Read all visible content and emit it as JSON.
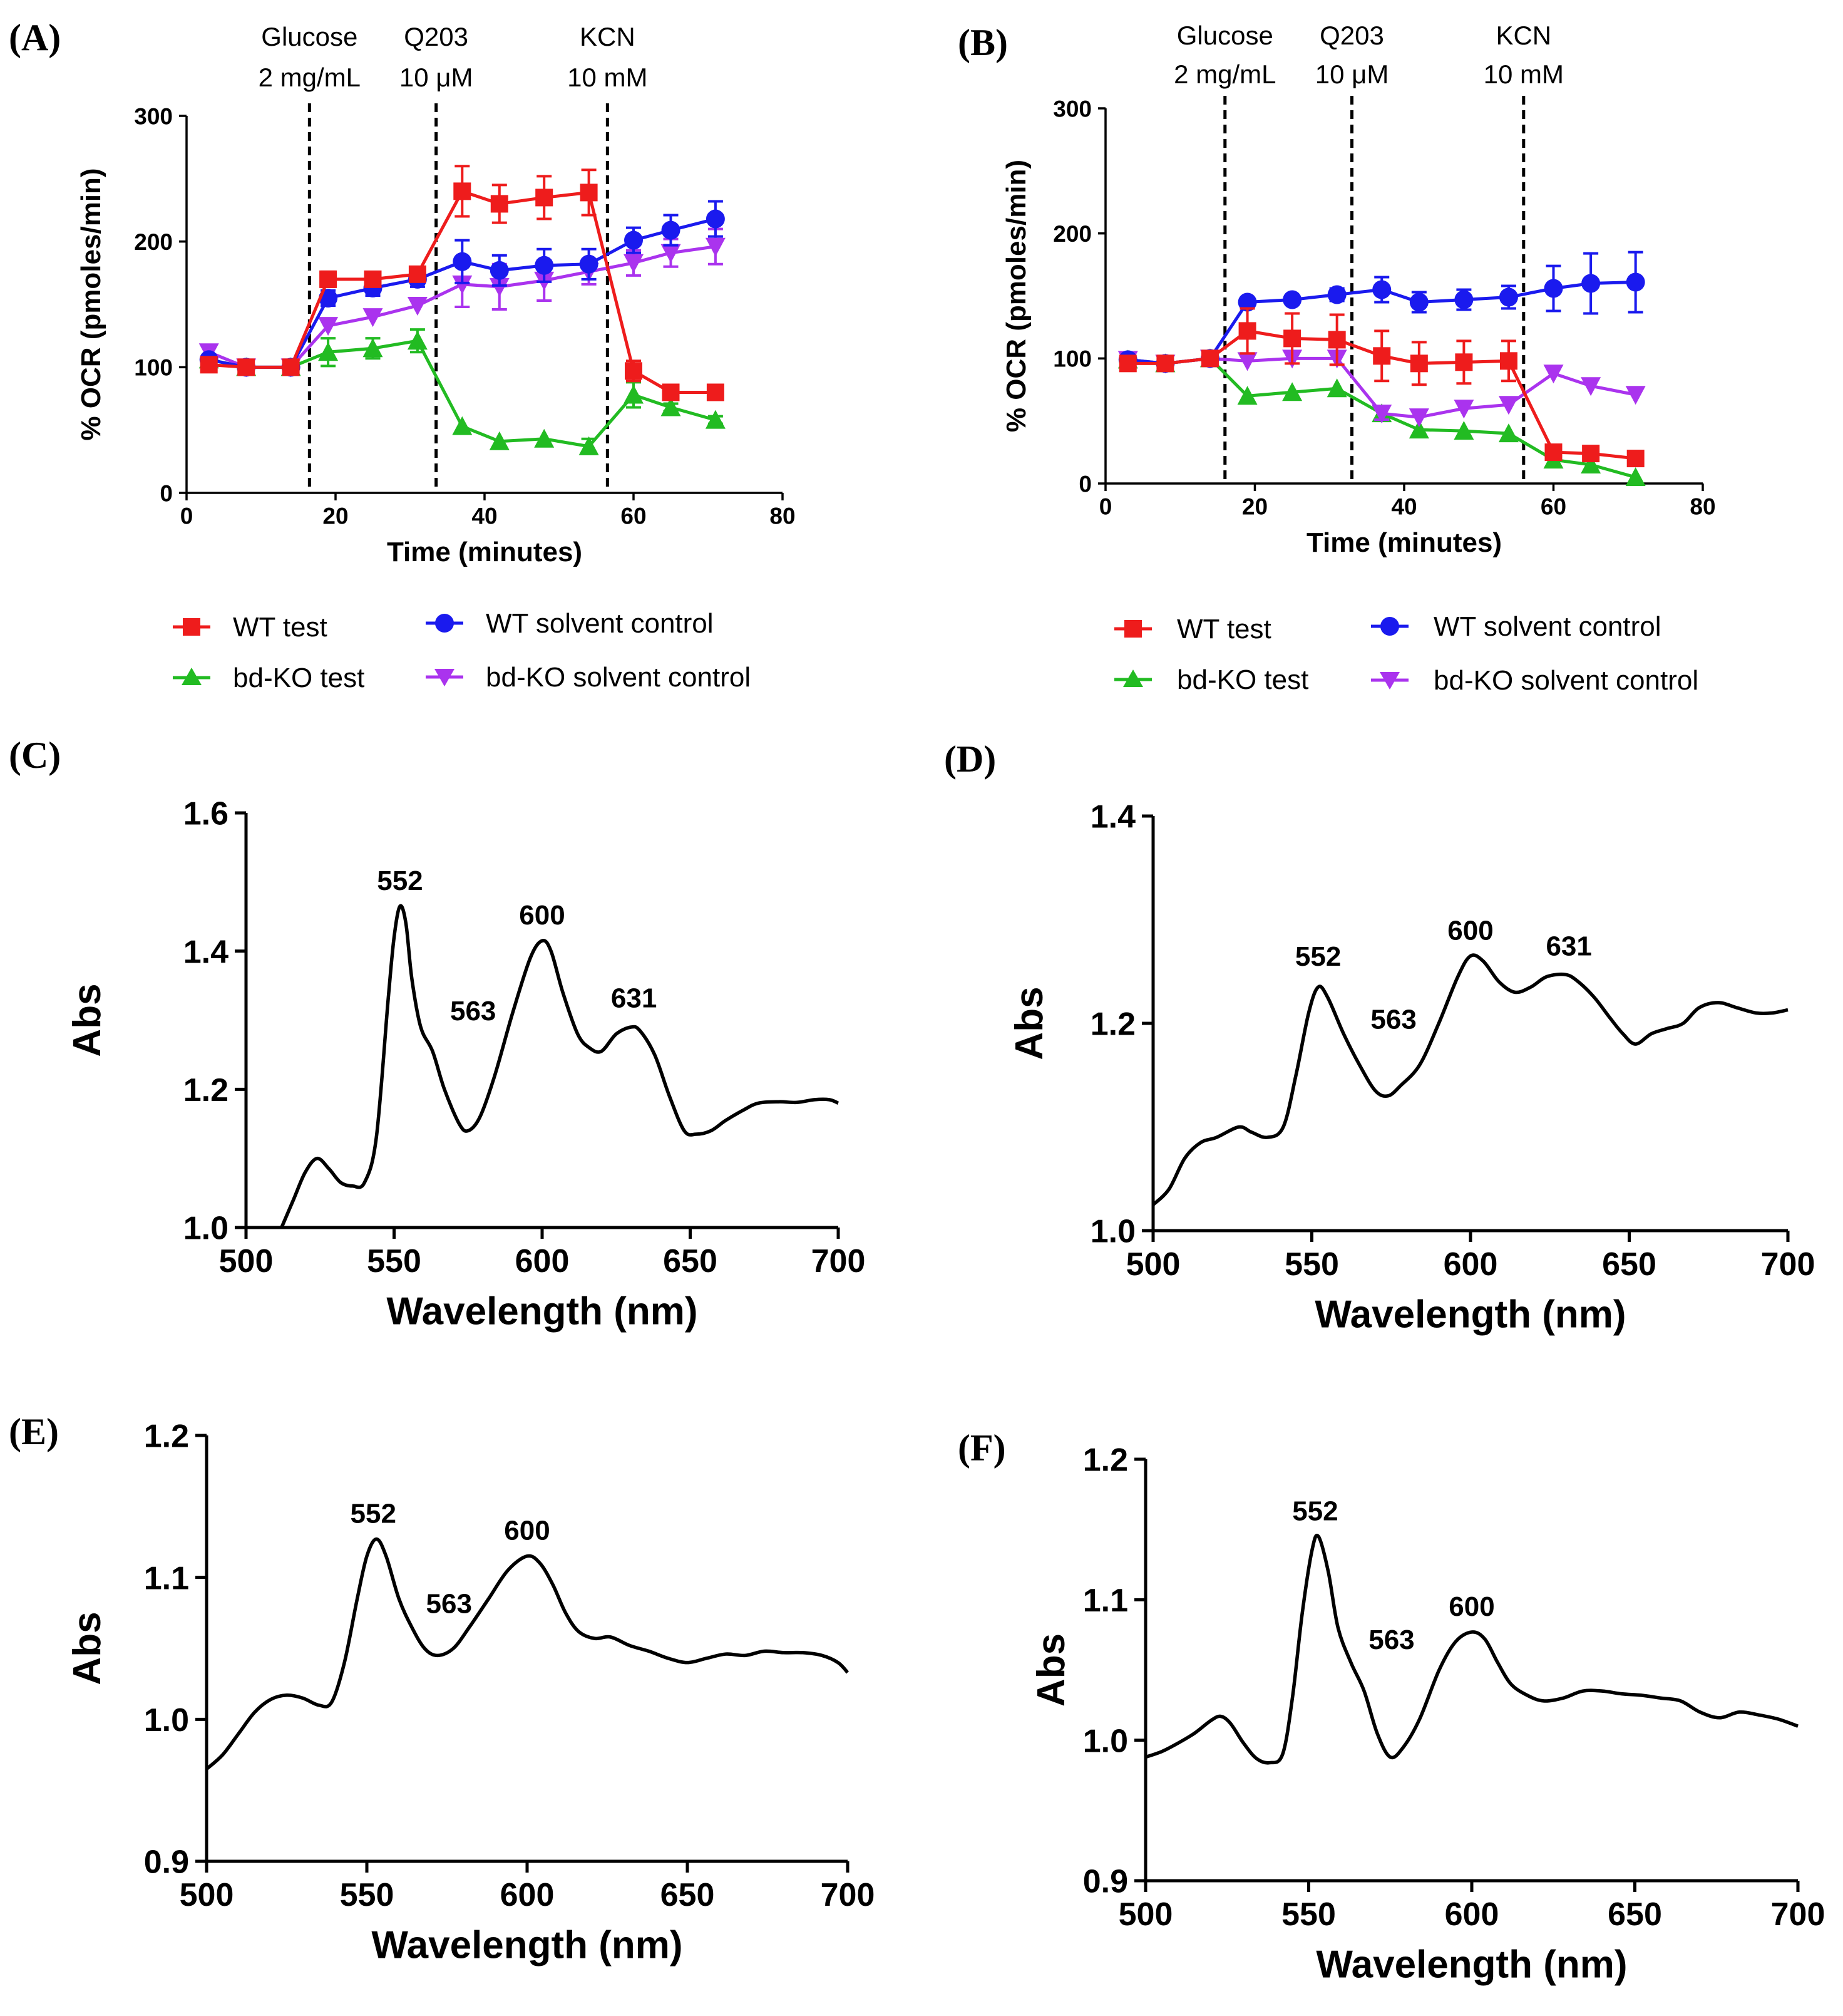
{
  "figure": {
    "panels": [
      "(A)",
      "(B)",
      "(C)",
      "(D)",
      "(E)",
      "(F)"
    ]
  },
  "chart_data": [
    {
      "id": "A",
      "type": "line",
      "panel_label": "(A)",
      "xlabel": "Time (minutes)",
      "ylabel": "% OCR (pmoles/min)",
      "xlim": [
        0,
        80
      ],
      "ylim": [
        0,
        300
      ],
      "xticks": [
        0,
        20,
        40,
        60,
        80
      ],
      "yticks": [
        0,
        100,
        200,
        300
      ],
      "annotations": [
        {
          "x": 16.5,
          "line1": "Glucose",
          "line2": "2 mg/mL"
        },
        {
          "x": 33.5,
          "line1": "Q203",
          "line2": "10 μM"
        },
        {
          "x": 56.5,
          "line1": "KCN",
          "line2": "10 mM"
        }
      ],
      "x": [
        3,
        8,
        14,
        19,
        25,
        31,
        37,
        42,
        48,
        54,
        60,
        65,
        71
      ],
      "series": [
        {
          "name": "WT test",
          "color": "#ee1c1c",
          "marker": "square",
          "values": [
            102,
            100,
            100,
            170,
            170,
            174,
            240,
            230,
            235,
            239,
            97,
            80,
            80
          ],
          "errors": [
            0,
            0,
            0,
            6,
            4,
            4,
            20,
            15,
            17,
            18,
            8,
            3,
            3
          ]
        },
        {
          "name": "WT solvent control",
          "color": "#1a1aee",
          "marker": "circle",
          "values": [
            106,
            100,
            100,
            155,
            163,
            170,
            184,
            177,
            181,
            182,
            201,
            209,
            218
          ],
          "errors": [
            0,
            0,
            0,
            6,
            6,
            6,
            17,
            12,
            13,
            12,
            10,
            12,
            14
          ]
        },
        {
          "name": "bd-KO test",
          "color": "#22bb22",
          "marker": "triangle-up",
          "values": [
            106,
            100,
            100,
            112,
            115,
            121,
            53,
            41,
            43,
            37,
            78,
            68,
            58
          ],
          "errors": [
            0,
            0,
            0,
            11,
            8,
            9,
            0,
            0,
            0,
            6,
            10,
            3,
            3
          ]
        },
        {
          "name": "bd-KO solvent control",
          "color": "#aa33ee",
          "marker": "triangle-down",
          "values": [
            112,
            100,
            100,
            133,
            140,
            149,
            166,
            164,
            169,
            176,
            183,
            191,
            196
          ],
          "errors": [
            0,
            0,
            0,
            0,
            0,
            0,
            18,
            18,
            16,
            10,
            10,
            11,
            14
          ]
        }
      ]
    },
    {
      "id": "B",
      "type": "line",
      "panel_label": "(B)",
      "xlabel": "Time (minutes)",
      "ylabel": "% OCR (pmoles/min)",
      "xlim": [
        0,
        80
      ],
      "ylim": [
        0,
        300
      ],
      "xticks": [
        0,
        20,
        40,
        60,
        80
      ],
      "yticks": [
        0,
        100,
        200,
        300
      ],
      "annotations": [
        {
          "x": 16,
          "line1": "Glucose",
          "line2": "2 mg/mL"
        },
        {
          "x": 33,
          "line1": "Q203",
          "line2": "10 μM"
        },
        {
          "x": 56,
          "line1": "KCN",
          "line2": "10 mM"
        }
      ],
      "x": [
        3,
        8,
        14,
        19,
        25,
        31,
        37,
        42,
        48,
        54,
        60,
        65,
        71
      ],
      "series": [
        {
          "name": "WT test",
          "color": "#ee1c1c",
          "marker": "square",
          "values": [
            96,
            96,
            100,
            122,
            116,
            115,
            102,
            96,
            97,
            98,
            25,
            24,
            20
          ],
          "errors": [
            0,
            4,
            0,
            18,
            20,
            20,
            20,
            17,
            17,
            16,
            3,
            3,
            3
          ]
        },
        {
          "name": "WT solvent control",
          "color": "#1a1aee",
          "marker": "circle",
          "values": [
            99,
            96,
            100,
            145,
            147,
            151,
            155,
            145,
            147,
            149,
            156,
            160,
            161
          ],
          "errors": [
            0,
            4,
            0,
            0,
            0,
            5,
            10,
            8,
            8,
            9,
            18,
            24,
            24
          ]
        },
        {
          "name": "bd-KO test",
          "color": "#22bb22",
          "marker": "triangle-up",
          "values": [
            99,
            96,
            100,
            70,
            73,
            76,
            56,
            43,
            42,
            40,
            19,
            15,
            5
          ],
          "errors": [
            0,
            0,
            0,
            0,
            0,
            0,
            5,
            0,
            0,
            0,
            0,
            0,
            0
          ]
        },
        {
          "name": "bd-KO solvent control",
          "color": "#aa33ee",
          "marker": "triangle-down",
          "values": [
            99,
            96,
            100,
            98,
            100,
            100,
            56,
            53,
            60,
            63,
            88,
            78,
            71
          ],
          "errors": [
            0,
            0,
            0,
            0,
            0,
            0,
            5,
            0,
            0,
            0,
            0,
            0,
            0
          ]
        }
      ]
    },
    {
      "id": "C",
      "type": "line",
      "panel_label": "(C)",
      "xlabel": "Wavelength (nm)",
      "ylabel": "Abs",
      "xlim": [
        500,
        700
      ],
      "ylim": [
        1.0,
        1.6
      ],
      "xticks": [
        500,
        550,
        600,
        650,
        700
      ],
      "yticks": [
        "1.0",
        "1.2",
        "1.4",
        "1.6"
      ],
      "peaks": [
        {
          "label": "552",
          "x": 552,
          "y": 1.465
        },
        {
          "label": "563",
          "x": 563,
          "y": 1.3
        },
        {
          "label": "600",
          "x": 600,
          "y": 1.415
        },
        {
          "label": "631",
          "x": 631,
          "y": 1.295
        }
      ],
      "spectrum": [
        [
          512,
          1.0
        ],
        [
          516,
          1.04
        ],
        [
          520,
          1.08
        ],
        [
          524,
          1.1
        ],
        [
          528,
          1.085
        ],
        [
          532,
          1.065
        ],
        [
          536,
          1.06
        ],
        [
          540,
          1.065
        ],
        [
          544,
          1.13
        ],
        [
          548,
          1.33
        ],
        [
          550,
          1.42
        ],
        [
          552,
          1.465
        ],
        [
          554,
          1.44
        ],
        [
          556,
          1.36
        ],
        [
          559,
          1.29
        ],
        [
          563,
          1.255
        ],
        [
          567,
          1.2
        ],
        [
          572,
          1.15
        ],
        [
          575,
          1.14
        ],
        [
          579,
          1.16
        ],
        [
          584,
          1.22
        ],
        [
          590,
          1.31
        ],
        [
          596,
          1.39
        ],
        [
          600,
          1.415
        ],
        [
          603,
          1.4
        ],
        [
          607,
          1.34
        ],
        [
          612,
          1.28
        ],
        [
          616,
          1.26
        ],
        [
          620,
          1.255
        ],
        [
          625,
          1.28
        ],
        [
          630,
          1.29
        ],
        [
          633,
          1.285
        ],
        [
          638,
          1.25
        ],
        [
          643,
          1.19
        ],
        [
          648,
          1.14
        ],
        [
          652,
          1.135
        ],
        [
          657,
          1.14
        ],
        [
          662,
          1.155
        ],
        [
          668,
          1.17
        ],
        [
          673,
          1.18
        ],
        [
          680,
          1.182
        ],
        [
          686,
          1.181
        ],
        [
          692,
          1.185
        ],
        [
          697,
          1.185
        ],
        [
          700,
          1.18
        ]
      ]
    },
    {
      "id": "D",
      "type": "line",
      "panel_label": "(D)",
      "xlabel": "Wavelength (nm)",
      "ylabel": "Abs",
      "xlim": [
        500,
        700
      ],
      "ylim": [
        1.0,
        1.4
      ],
      "xticks": [
        500,
        550,
        600,
        650,
        700
      ],
      "yticks": [
        "1.0",
        "1.2",
        "1.4"
      ],
      "peaks": [
        {
          "label": "552",
          "x": 552,
          "y": 1.24
        },
        {
          "label": "563",
          "x": 563,
          "y": 1.195
        },
        {
          "label": "600",
          "x": 600,
          "y": 1.265
        },
        {
          "label": "631",
          "x": 631,
          "y": 1.25
        }
      ],
      "spectrum": [
        [
          500,
          1.025
        ],
        [
          505,
          1.04
        ],
        [
          510,
          1.07
        ],
        [
          515,
          1.085
        ],
        [
          520,
          1.09
        ],
        [
          527,
          1.1
        ],
        [
          531,
          1.095
        ],
        [
          536,
          1.09
        ],
        [
          541,
          1.1
        ],
        [
          545,
          1.15
        ],
        [
          549,
          1.21
        ],
        [
          552,
          1.235
        ],
        [
          555,
          1.225
        ],
        [
          560,
          1.19
        ],
        [
          565,
          1.16
        ],
        [
          570,
          1.135
        ],
        [
          574,
          1.13
        ],
        [
          578,
          1.14
        ],
        [
          584,
          1.16
        ],
        [
          590,
          1.2
        ],
        [
          596,
          1.245
        ],
        [
          600,
          1.265
        ],
        [
          604,
          1.26
        ],
        [
          609,
          1.24
        ],
        [
          614,
          1.23
        ],
        [
          619,
          1.235
        ],
        [
          624,
          1.245
        ],
        [
          630,
          1.247
        ],
        [
          634,
          1.24
        ],
        [
          639,
          1.225
        ],
        [
          644,
          1.205
        ],
        [
          648,
          1.19
        ],
        [
          652,
          1.18
        ],
        [
          657,
          1.19
        ],
        [
          662,
          1.195
        ],
        [
          667,
          1.2
        ],
        [
          672,
          1.215
        ],
        [
          678,
          1.22
        ],
        [
          684,
          1.215
        ],
        [
          690,
          1.21
        ],
        [
          695,
          1.21
        ],
        [
          700,
          1.213
        ]
      ]
    },
    {
      "id": "E",
      "type": "line",
      "panel_label": "(E)",
      "xlabel": "Wavelength (nm)",
      "ylabel": "Abs",
      "xlim": [
        500,
        700
      ],
      "ylim": [
        0.9,
        1.2
      ],
      "xticks": [
        500,
        550,
        600,
        650,
        700
      ],
      "yticks": [
        "0.9",
        "1.0",
        "1.1",
        "1.2"
      ],
      "peaks": [
        {
          "label": "552",
          "x": 552,
          "y": 1.127
        },
        {
          "label": "563",
          "x": 563,
          "y": 1.075
        },
        {
          "label": "600",
          "x": 600,
          "y": 1.115
        }
      ],
      "spectrum": [
        [
          500,
          0.965
        ],
        [
          505,
          0.975
        ],
        [
          510,
          0.99
        ],
        [
          515,
          1.005
        ],
        [
          520,
          1.014
        ],
        [
          525,
          1.017
        ],
        [
          530,
          1.015
        ],
        [
          535,
          1.01
        ],
        [
          539,
          1.012
        ],
        [
          543,
          1.04
        ],
        [
          547,
          1.085
        ],
        [
          550,
          1.115
        ],
        [
          553,
          1.127
        ],
        [
          556,
          1.115
        ],
        [
          560,
          1.085
        ],
        [
          564,
          1.065
        ],
        [
          568,
          1.05
        ],
        [
          572,
          1.045
        ],
        [
          577,
          1.05
        ],
        [
          582,
          1.065
        ],
        [
          588,
          1.085
        ],
        [
          594,
          1.105
        ],
        [
          600,
          1.115
        ],
        [
          604,
          1.11
        ],
        [
          608,
          1.095
        ],
        [
          612,
          1.075
        ],
        [
          616,
          1.062
        ],
        [
          621,
          1.057
        ],
        [
          626,
          1.058
        ],
        [
          632,
          1.052
        ],
        [
          638,
          1.048
        ],
        [
          644,
          1.043
        ],
        [
          650,
          1.04
        ],
        [
          656,
          1.043
        ],
        [
          662,
          1.046
        ],
        [
          668,
          1.045
        ],
        [
          674,
          1.048
        ],
        [
          680,
          1.047
        ],
        [
          686,
          1.047
        ],
        [
          692,
          1.045
        ],
        [
          697,
          1.04
        ],
        [
          700,
          1.033
        ]
      ]
    },
    {
      "id": "F",
      "type": "line",
      "panel_label": "(F)",
      "xlabel": "Wavelength (nm)",
      "ylabel": "Abs",
      "xlim": [
        500,
        700
      ],
      "ylim": [
        0.9,
        1.2
      ],
      "xticks": [
        500,
        550,
        600,
        650,
        700
      ],
      "yticks": [
        "0.9",
        "1.0",
        "1.1",
        "1.2"
      ],
      "peaks": [
        {
          "label": "552",
          "x": 552,
          "y": 1.145
        },
        {
          "label": "563",
          "x": 563,
          "y": 1.065
        },
        {
          "label": "600",
          "x": 600,
          "y": 1.077
        }
      ],
      "spectrum": [
        [
          500,
          0.988
        ],
        [
          505,
          0.992
        ],
        [
          510,
          0.998
        ],
        [
          515,
          1.005
        ],
        [
          520,
          1.014
        ],
        [
          523,
          1.017
        ],
        [
          526,
          1.012
        ],
        [
          530,
          0.998
        ],
        [
          534,
          0.987
        ],
        [
          538,
          0.984
        ],
        [
          542,
          0.99
        ],
        [
          545,
          1.03
        ],
        [
          548,
          1.09
        ],
        [
          551,
          1.135
        ],
        [
          553,
          1.145
        ],
        [
          556,
          1.12
        ],
        [
          559,
          1.08
        ],
        [
          563,
          1.055
        ],
        [
          567,
          1.035
        ],
        [
          571,
          1.005
        ],
        [
          575,
          0.988
        ],
        [
          579,
          0.995
        ],
        [
          584,
          1.015
        ],
        [
          590,
          1.05
        ],
        [
          595,
          1.07
        ],
        [
          600,
          1.077
        ],
        [
          604,
          1.072
        ],
        [
          608,
          1.055
        ],
        [
          612,
          1.04
        ],
        [
          617,
          1.032
        ],
        [
          622,
          1.028
        ],
        [
          628,
          1.03
        ],
        [
          634,
          1.035
        ],
        [
          640,
          1.035
        ],
        [
          646,
          1.033
        ],
        [
          652,
          1.032
        ],
        [
          658,
          1.03
        ],
        [
          664,
          1.028
        ],
        [
          670,
          1.02
        ],
        [
          676,
          1.016
        ],
        [
          682,
          1.02
        ],
        [
          688,
          1.018
        ],
        [
          694,
          1.015
        ],
        [
          700,
          1.01
        ]
      ]
    }
  ]
}
